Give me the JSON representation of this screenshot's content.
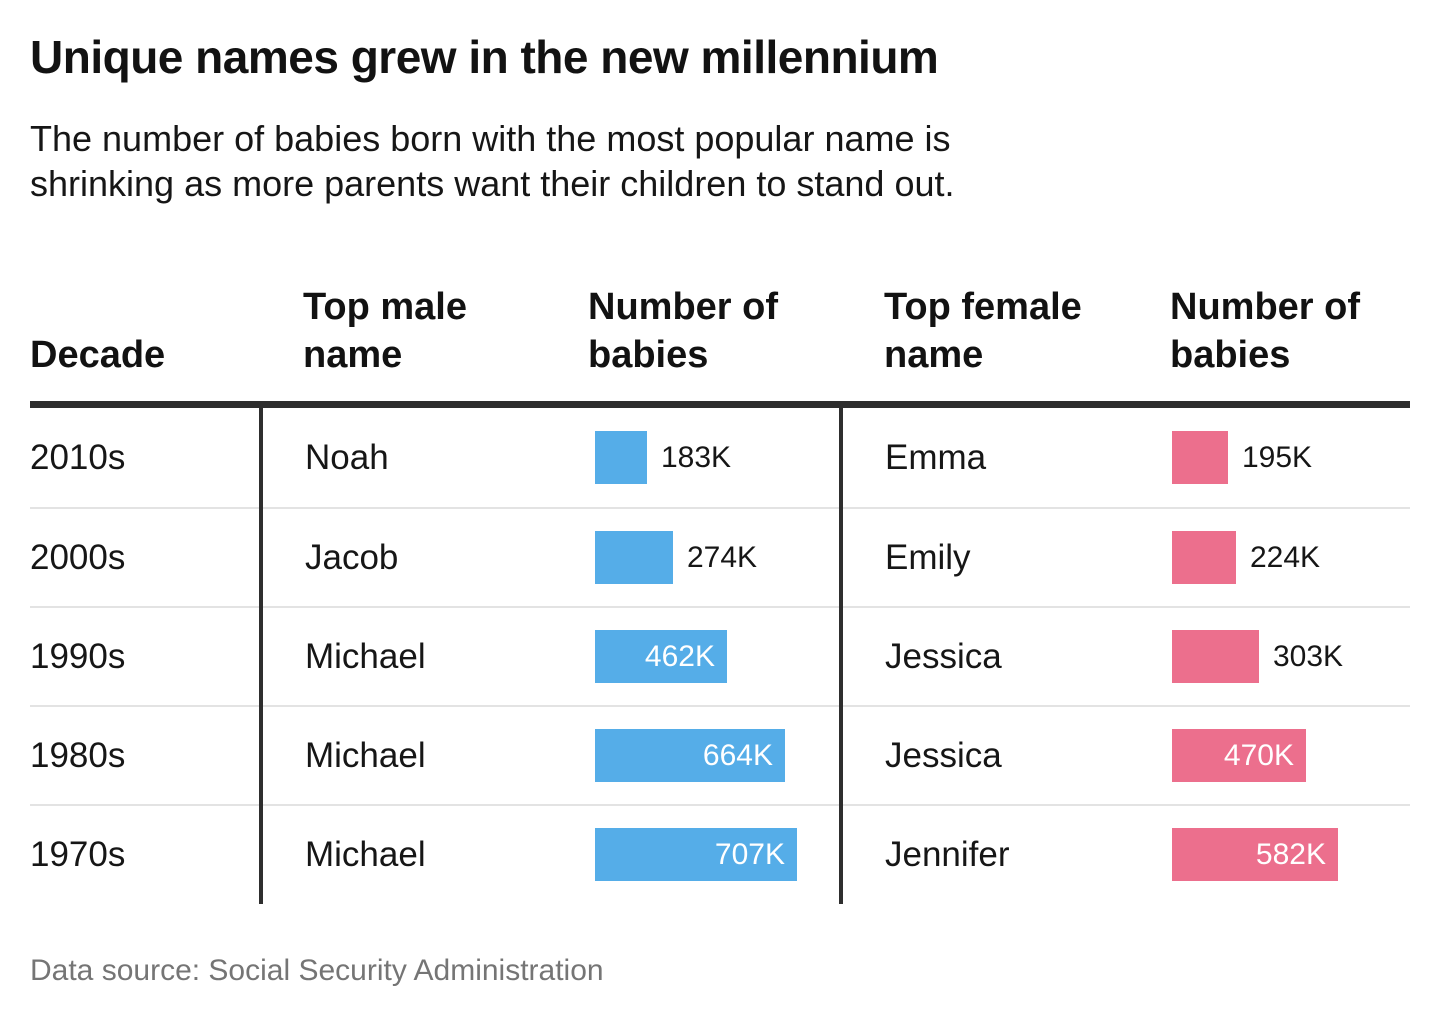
{
  "title": "Unique names grew in the new millennium",
  "subtitle_lines": [
    "The number of babies born with the most popular name is",
    "shrinking as more parents want their children to stand out."
  ],
  "source": "Data source: Social Security Administration",
  "columns": [
    "Decade",
    "Top male name",
    "Number of babies",
    "Top female name",
    "Number of babies"
  ],
  "colors": {
    "male_bar": "#55ade8",
    "female_bar": "#ec6f8d",
    "header_rule": "#2e2e2e",
    "row_separator": "#e3e3e3",
    "text": "#161616",
    "muted_text": "#757575",
    "bar_label_inside": "#ffffff"
  },
  "chart_data": {
    "type": "bar",
    "title": "Unique names grew in the new millennium",
    "subtitle": "The number of babies born with the most popular name is shrinking as more parents want their children to stand out.",
    "categories": [
      "2010s",
      "2000s",
      "1990s",
      "1980s",
      "1970s"
    ],
    "series": [
      {
        "name": "Top male name",
        "color": "#55ade8",
        "names": [
          "Noah",
          "Jacob",
          "Michael",
          "Michael",
          "Michael"
        ],
        "values_k": [
          183,
          274,
          462,
          664,
          707
        ],
        "labels": [
          "183K",
          "274K",
          "462K",
          "664K",
          "707K"
        ]
      },
      {
        "name": "Top female name",
        "color": "#ec6f8d",
        "names": [
          "Emma",
          "Emily",
          "Jessica",
          "Jessica",
          "Jennifer"
        ],
        "values_k": [
          195,
          224,
          303,
          470,
          582
        ],
        "labels": [
          "195K",
          "224K",
          "303K",
          "470K",
          "582K"
        ]
      }
    ],
    "value_unit": "thousands of babies",
    "xlim_k": [
      0,
      860
    ],
    "grid": false,
    "legend": "none",
    "orientation": "horizontal"
  }
}
